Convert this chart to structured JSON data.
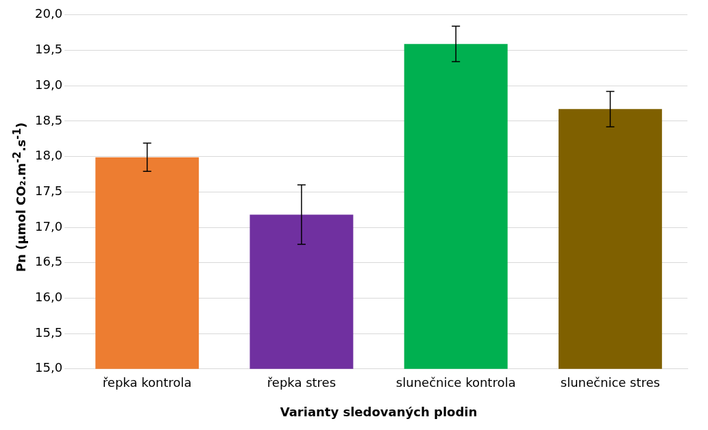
{
  "chart_data": {
    "type": "bar",
    "categories": [
      "řepka kontrola",
      "řepka stres",
      "slunečnice kontrola",
      "slunečnice stres"
    ],
    "values": [
      17.99,
      17.18,
      19.59,
      18.67
    ],
    "colors": [
      "#ed7d31",
      "#7030a0",
      "#00b050",
      "#7f6000"
    ],
    "errors": [
      0.2,
      0.42,
      0.25,
      0.25
    ],
    "xlabel": "Varianty sledovaných plodin",
    "ylabel": "Pn (µmol CO₂.m$^{-2}$.s$^{-1}$)",
    "ylim": [
      15,
      20
    ],
    "yticks": [
      {
        "value": 15,
        "label": "15,0"
      },
      {
        "value": 15.5,
        "label": "15,5"
      },
      {
        "value": 16,
        "label": "16,0"
      },
      {
        "value": 16.5,
        "label": "16,5"
      },
      {
        "value": 17,
        "label": "17,0"
      },
      {
        "value": 17.5,
        "label": "17,5"
      },
      {
        "value": 18,
        "label": "18,0"
      },
      {
        "value": 18.5,
        "label": "18,5"
      },
      {
        "value": 19,
        "label": "19,0"
      },
      {
        "value": 19.5,
        "label": "19,5"
      },
      {
        "value": 20,
        "label": "20,0"
      }
    ],
    "grid": "y",
    "legend": false
  }
}
